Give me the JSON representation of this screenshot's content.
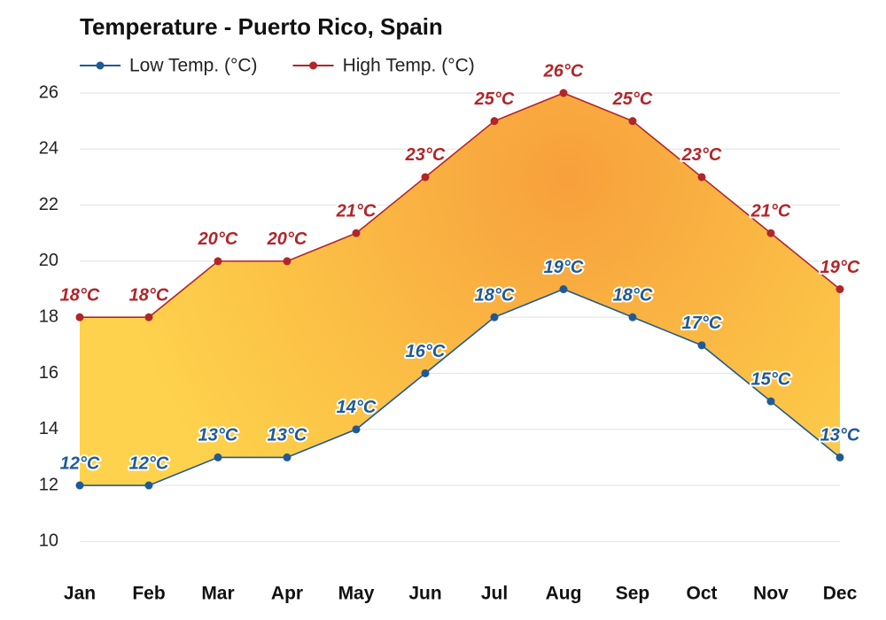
{
  "chart_data": {
    "type": "range-line",
    "title": "Temperature - Puerto Rico, Spain",
    "categories": [
      "Jan",
      "Feb",
      "Mar",
      "Apr",
      "May",
      "Jun",
      "Jul",
      "Aug",
      "Sep",
      "Oct",
      "Nov",
      "Dec"
    ],
    "series": [
      {
        "name": "Low Temp. (°C)",
        "color": "#1f5a96",
        "values": [
          12,
          12,
          13,
          13,
          14,
          16,
          18,
          19,
          18,
          17,
          15,
          13
        ],
        "value_labels": [
          "12°C",
          "12°C",
          "13°C",
          "13°C",
          "14°C",
          "16°C",
          "18°C",
          "19°C",
          "18°C",
          "17°C",
          "15°C",
          "13°C"
        ]
      },
      {
        "name": "High Temp. (°C)",
        "color": "#b0262a",
        "values": [
          18,
          18,
          20,
          20,
          21,
          23,
          25,
          26,
          25,
          23,
          21,
          19
        ],
        "value_labels": [
          "18°C",
          "18°C",
          "20°C",
          "20°C",
          "21°C",
          "23°C",
          "25°C",
          "26°C",
          "25°C",
          "23°C",
          "21°C",
          "19°C"
        ]
      }
    ],
    "ylim": [
      9,
      26
    ],
    "yticks": [
      10,
      12,
      14,
      16,
      18,
      20,
      22,
      24,
      26
    ],
    "grid": true
  }
}
